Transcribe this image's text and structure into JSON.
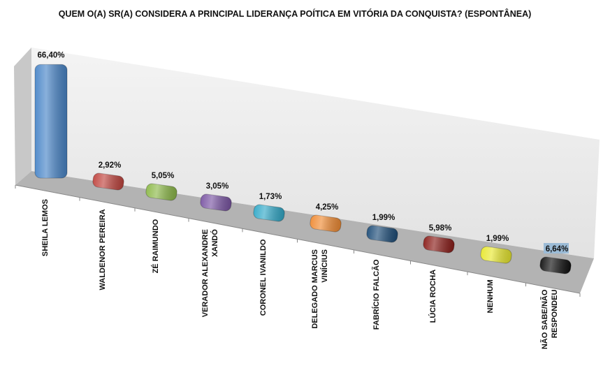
{
  "chart_data": {
    "type": "bar",
    "title": "QUEM O(A) SR(A) CONSIDERA A PRINCIPAL LIDERANÇA POÍTICA EM VITÓRIA DA CONQUISTA? (ESPONTÂNEA)",
    "categories": [
      [
        "SHEILA LEMOS"
      ],
      [
        "WALDENOR PEREIRA"
      ],
      [
        "ZÉ RAIMUNDO"
      ],
      [
        "VERADOR ALEXANDRE",
        "XANDÓ"
      ],
      [
        "CORONEL IVANILDO"
      ],
      [
        "DELEGADO MARCUS",
        "VINÍCIUS"
      ],
      [
        "FABRÍCIO FALCÃO"
      ],
      [
        "LÚCIA ROCHA"
      ],
      [
        "NENHUM"
      ],
      [
        "NÃO SABE/NÃO",
        "RESPONDEU"
      ]
    ],
    "values": [
      66.4,
      2.92,
      5.05,
      3.05,
      1.73,
      4.25,
      1.99,
      5.98,
      1.99,
      6.64
    ],
    "labels": [
      "66,40%",
      "2,92%",
      "5,05%",
      "3,05%",
      "1,73%",
      "4,25%",
      "1,99%",
      "5,98%",
      "1,99%",
      "6,64%"
    ],
    "colors": [
      "#4a86c8",
      "#c0453f",
      "#8db94a",
      "#7b56a4",
      "#33a9c8",
      "#f08c35",
      "#1f4e79",
      "#8b1e1a",
      "#e8e830",
      "#111111"
    ],
    "xlabel": "",
    "ylabel": "",
    "ylim": [
      0,
      70
    ],
    "grid": false,
    "legend": "none",
    "style": "3d-perspective"
  }
}
